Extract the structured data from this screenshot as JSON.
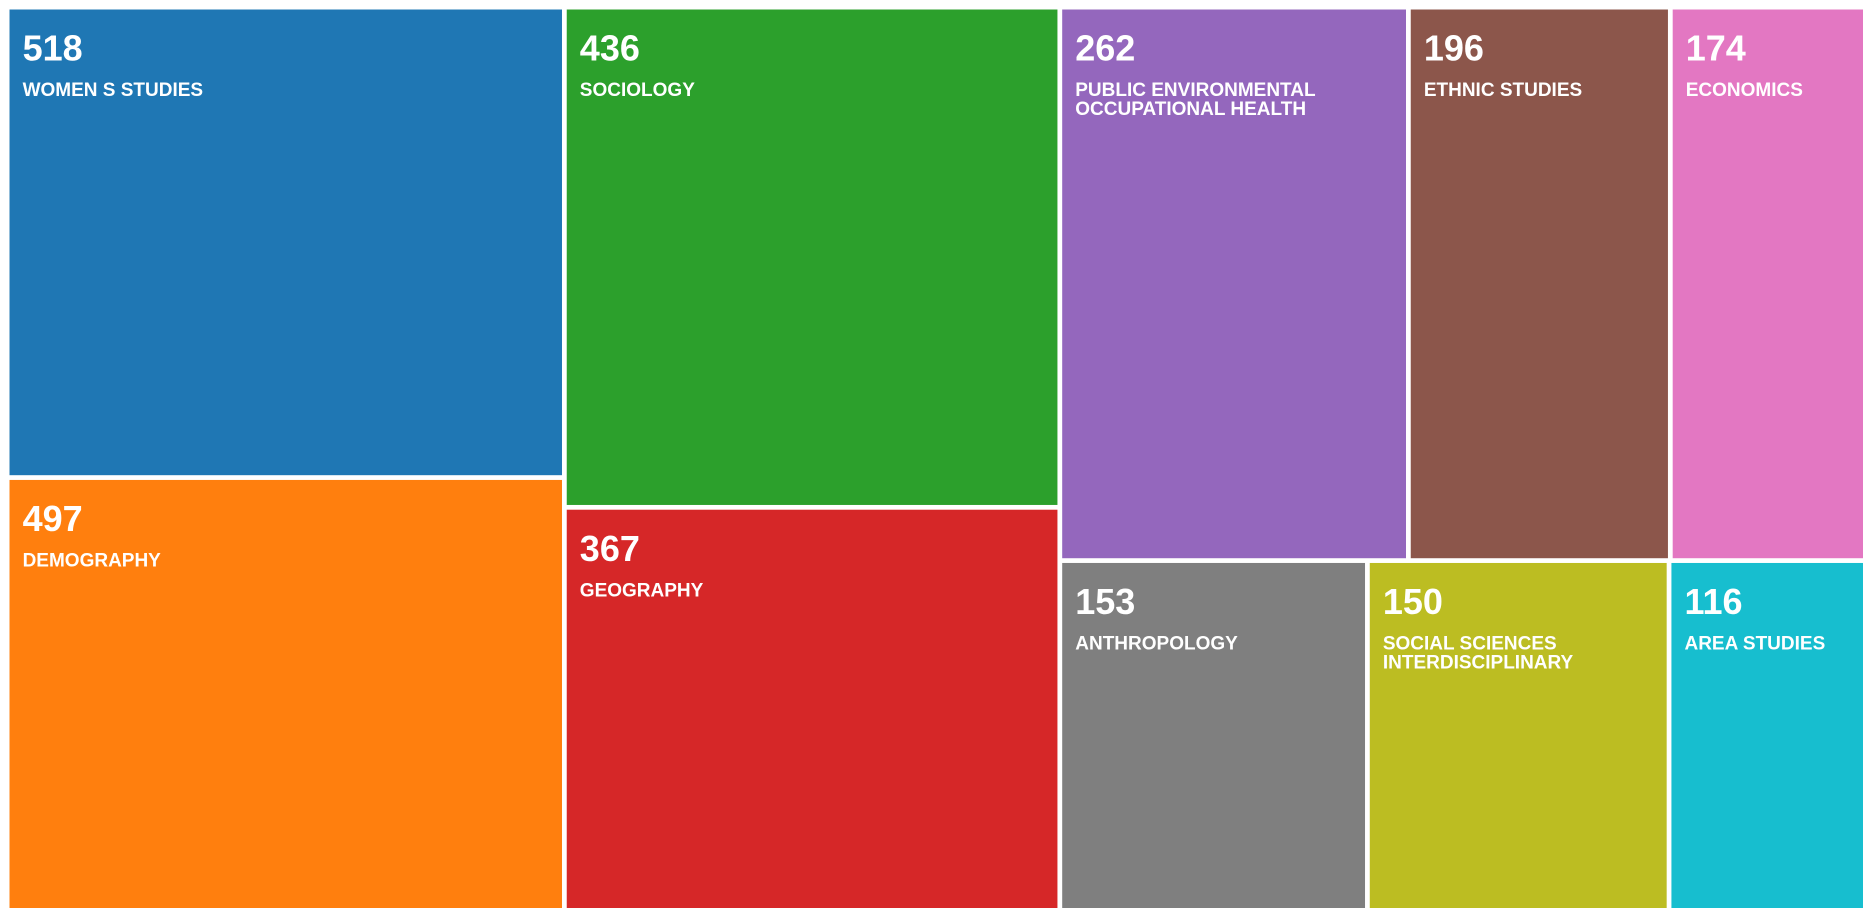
{
  "chart_data": {
    "type": "treemap",
    "categories": [
      "WOMEN S STUDIES",
      "DEMOGRAPHY",
      "SOCIOLOGY",
      "GEOGRAPHY",
      "PUBLIC ENVIRONMENTAL OCCUPATIONAL HEALTH",
      "ETHNIC STUDIES",
      "ECONOMICS",
      "ANTHROPOLOGY",
      "SOCIAL SCIENCES INTERDISCIPLINARY",
      "AREA STUDIES"
    ],
    "values": [
      518,
      497,
      436,
      367,
      262,
      196,
      174,
      153,
      150,
      116
    ],
    "colors": [
      "#1f77b4",
      "#ff7f0e",
      "#2ca02c",
      "#d62728",
      "#9467bd",
      "#8c564b",
      "#e377c2",
      "#7f7f7f",
      "#bcbd22",
      "#17becf"
    ]
  }
}
